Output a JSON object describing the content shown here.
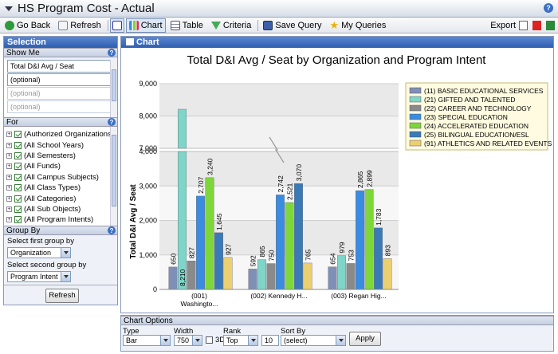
{
  "app": {
    "title": "HS Program Cost - Actual"
  },
  "toolbar": {
    "go_back": "Go Back",
    "refresh": "Refresh",
    "chart": "Chart",
    "table": "Table",
    "criteria": "Criteria",
    "save_query": "Save Query",
    "my_queries": "My Queries",
    "export": "Export"
  },
  "selection": {
    "title": "Selection",
    "show_me": {
      "label": "Show Me",
      "fields": [
        "Total D&I Avg / Seat",
        "(optional)",
        "(optional)",
        "(optional)"
      ]
    },
    "for": {
      "label": "For",
      "items": [
        "(Authorized Organizations)",
        "(All School Years)",
        "(All Semesters)",
        "(All Funds)",
        "(All Campus Subjects)",
        "(All Class Types)",
        "(All Categories)",
        "(All Sub Objects)",
        "(All Program Intents)"
      ]
    },
    "group_by": {
      "label": "Group By",
      "first_label": "Select first group by",
      "first_value": "Organization",
      "second_label": "Select second group by",
      "second_value": "Program Intent"
    },
    "refresh_label": "Refresh"
  },
  "chart_panel": {
    "title": "Chart"
  },
  "chart_data": {
    "type": "bar",
    "title": "Total D&I Avg / Seat by Organization and Program Intent",
    "ylabel": "Total D&I Avg / Seat",
    "xlabel": "",
    "categories": [
      "(001)\nWashingto...",
      "(002) Kennedy H...",
      "(003) Regan Hig..."
    ],
    "y_ticks_lower": [
      "0",
      "1,000",
      "2,000",
      "3,000",
      "4,000"
    ],
    "y_ticks_upper": [
      "7,000",
      "8,000",
      "9,000"
    ],
    "axis_break": [
      4000,
      7000
    ],
    "ylim": [
      0,
      9000
    ],
    "grid": true,
    "legend": "top-right",
    "series": [
      {
        "name": "(11) BASIC EDUCATIONAL SERVICES",
        "color": "#7f8fb6",
        "values": [
          650,
          592,
          654
        ]
      },
      {
        "name": "(21) GIFTED AND TALENTED",
        "color": "#7fd6c8",
        "values": [
          8210,
          865,
          979
        ]
      },
      {
        "name": "(22) CAREER AND TECHNOLOGY",
        "color": "#8a8a8a",
        "values": [
          827,
          750,
          753
        ]
      },
      {
        "name": "(23) SPECIAL EDUCATION",
        "color": "#3a8ce0",
        "values": [
          2707,
          2742,
          2865
        ]
      },
      {
        "name": "(24) ACCELERATED EDUCATION",
        "color": "#7ed63a",
        "values": [
          3240,
          2521,
          2899
        ]
      },
      {
        "name": "(25) BILINGUAL EDUCATION/ESL",
        "color": "#3a7ab6",
        "values": [
          1645,
          3070,
          1783
        ]
      },
      {
        "name": "(91) ATHLETICS AND RELATED EVENTS",
        "color": "#ecd070",
        "values": [
          927,
          765,
          893
        ]
      }
    ]
  },
  "chart_options": {
    "title": "Chart Options",
    "type_label": "Type",
    "type_value": "Bar",
    "width_label": "Width",
    "width_value": "750",
    "threed_label": "3D",
    "rank_label": "Rank",
    "rank_value": "Top",
    "rank_count": "10",
    "sort_label": "Sort By",
    "sort_value": "(select)",
    "apply_label": "Apply"
  }
}
